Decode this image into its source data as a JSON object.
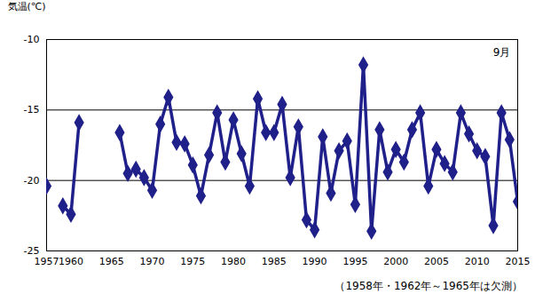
{
  "chart_data": {
    "type": "line",
    "y_label": "気温(℃)",
    "annotation": "9月",
    "caption": "（1958年・1962年～1965年は欠測）",
    "x": [
      1957,
      1958,
      1959,
      1960,
      1961,
      1962,
      1963,
      1964,
      1965,
      1966,
      1967,
      1968,
      1969,
      1970,
      1971,
      1972,
      1973,
      1974,
      1975,
      1976,
      1977,
      1978,
      1979,
      1980,
      1981,
      1982,
      1983,
      1984,
      1985,
      1986,
      1987,
      1988,
      1989,
      1990,
      1991,
      1992,
      1993,
      1994,
      1995,
      1996,
      1997,
      1998,
      1999,
      2000,
      2001,
      2002,
      2003,
      2004,
      2005,
      2006,
      2007,
      2008,
      2009,
      2010,
      2011,
      2012,
      2013,
      2014,
      2015
    ],
    "series": [
      {
        "name": "9月",
        "color": "#20208a",
        "marker": "diamond",
        "values": [
          -20.4,
          null,
          -21.8,
          -22.4,
          -15.9,
          null,
          null,
          null,
          null,
          -16.6,
          -19.5,
          -19.2,
          -19.8,
          -20.7,
          -16.0,
          -14.1,
          -17.3,
          -17.4,
          -18.9,
          -21.1,
          -18.2,
          -15.2,
          -18.7,
          -15.7,
          -18.1,
          -20.4,
          -14.2,
          -16.6,
          -16.6,
          -14.6,
          -19.8,
          -16.2,
          -22.8,
          -23.5,
          -16.9,
          -20.9,
          -17.9,
          -17.2,
          -21.7,
          -11.8,
          -23.6,
          -16.4,
          -19.4,
          -17.8,
          -18.7,
          -16.4,
          -15.2,
          -20.4,
          -17.8,
          -18.8,
          -19.4,
          -15.2,
          -16.7,
          -17.9,
          -18.3,
          -23.2,
          -15.2,
          -17.1,
          -21.5
        ]
      }
    ],
    "xlim": [
      1957,
      2015
    ],
    "xticks": [
      1957,
      1960,
      1965,
      1970,
      1975,
      1980,
      1985,
      1990,
      1995,
      2000,
      2005,
      2010,
      2015
    ],
    "ylim": [
      -25,
      -10
    ],
    "yticks": [
      -25,
      -20,
      -15,
      -10
    ],
    "grid": true
  }
}
